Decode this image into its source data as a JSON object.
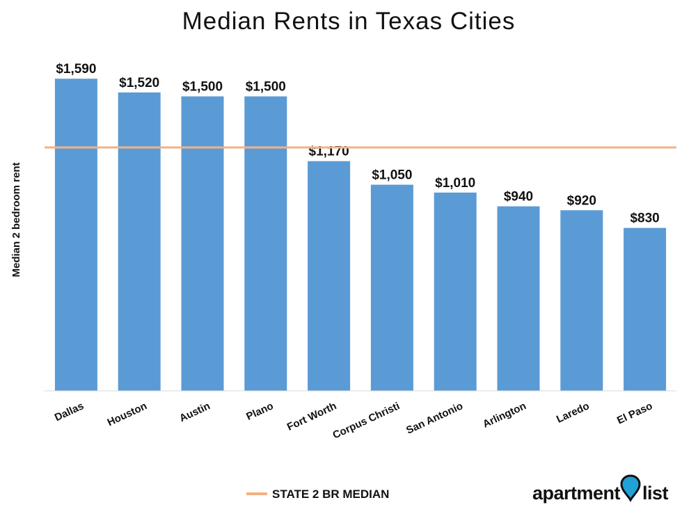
{
  "chart_data": {
    "type": "bar",
    "title": "Median Rents in Texas Cities",
    "ylabel": "Median 2 bedroom rent",
    "categories": [
      "Dallas",
      "Houston",
      "Austin",
      "Plano",
      "Fort Worth",
      "Corpus Christi",
      "San Antonio",
      "Arlington",
      "Laredo",
      "El Paso"
    ],
    "values": [
      1590,
      1520,
      1500,
      1500,
      1170,
      1050,
      1010,
      940,
      920,
      830
    ],
    "value_labels": [
      "$1,590",
      "$1,520",
      "$1,500",
      "$1,500",
      "$1,170",
      "$1,050",
      "$1,010",
      "$940",
      "$920",
      "$830"
    ],
    "ylim": [
      0,
      1750
    ],
    "reference_line": {
      "label": "STATE 2 BR MEDIAN",
      "value": 1240,
      "color": "#f4b183"
    },
    "bar_color": "#5b9bd5",
    "grid": false,
    "legend": "bottom-center"
  },
  "logo": {
    "text_left": "apartment",
    "text_right": "list",
    "pin_color": "#1fa2d6",
    "pin_icon": "location-pin-icon"
  }
}
